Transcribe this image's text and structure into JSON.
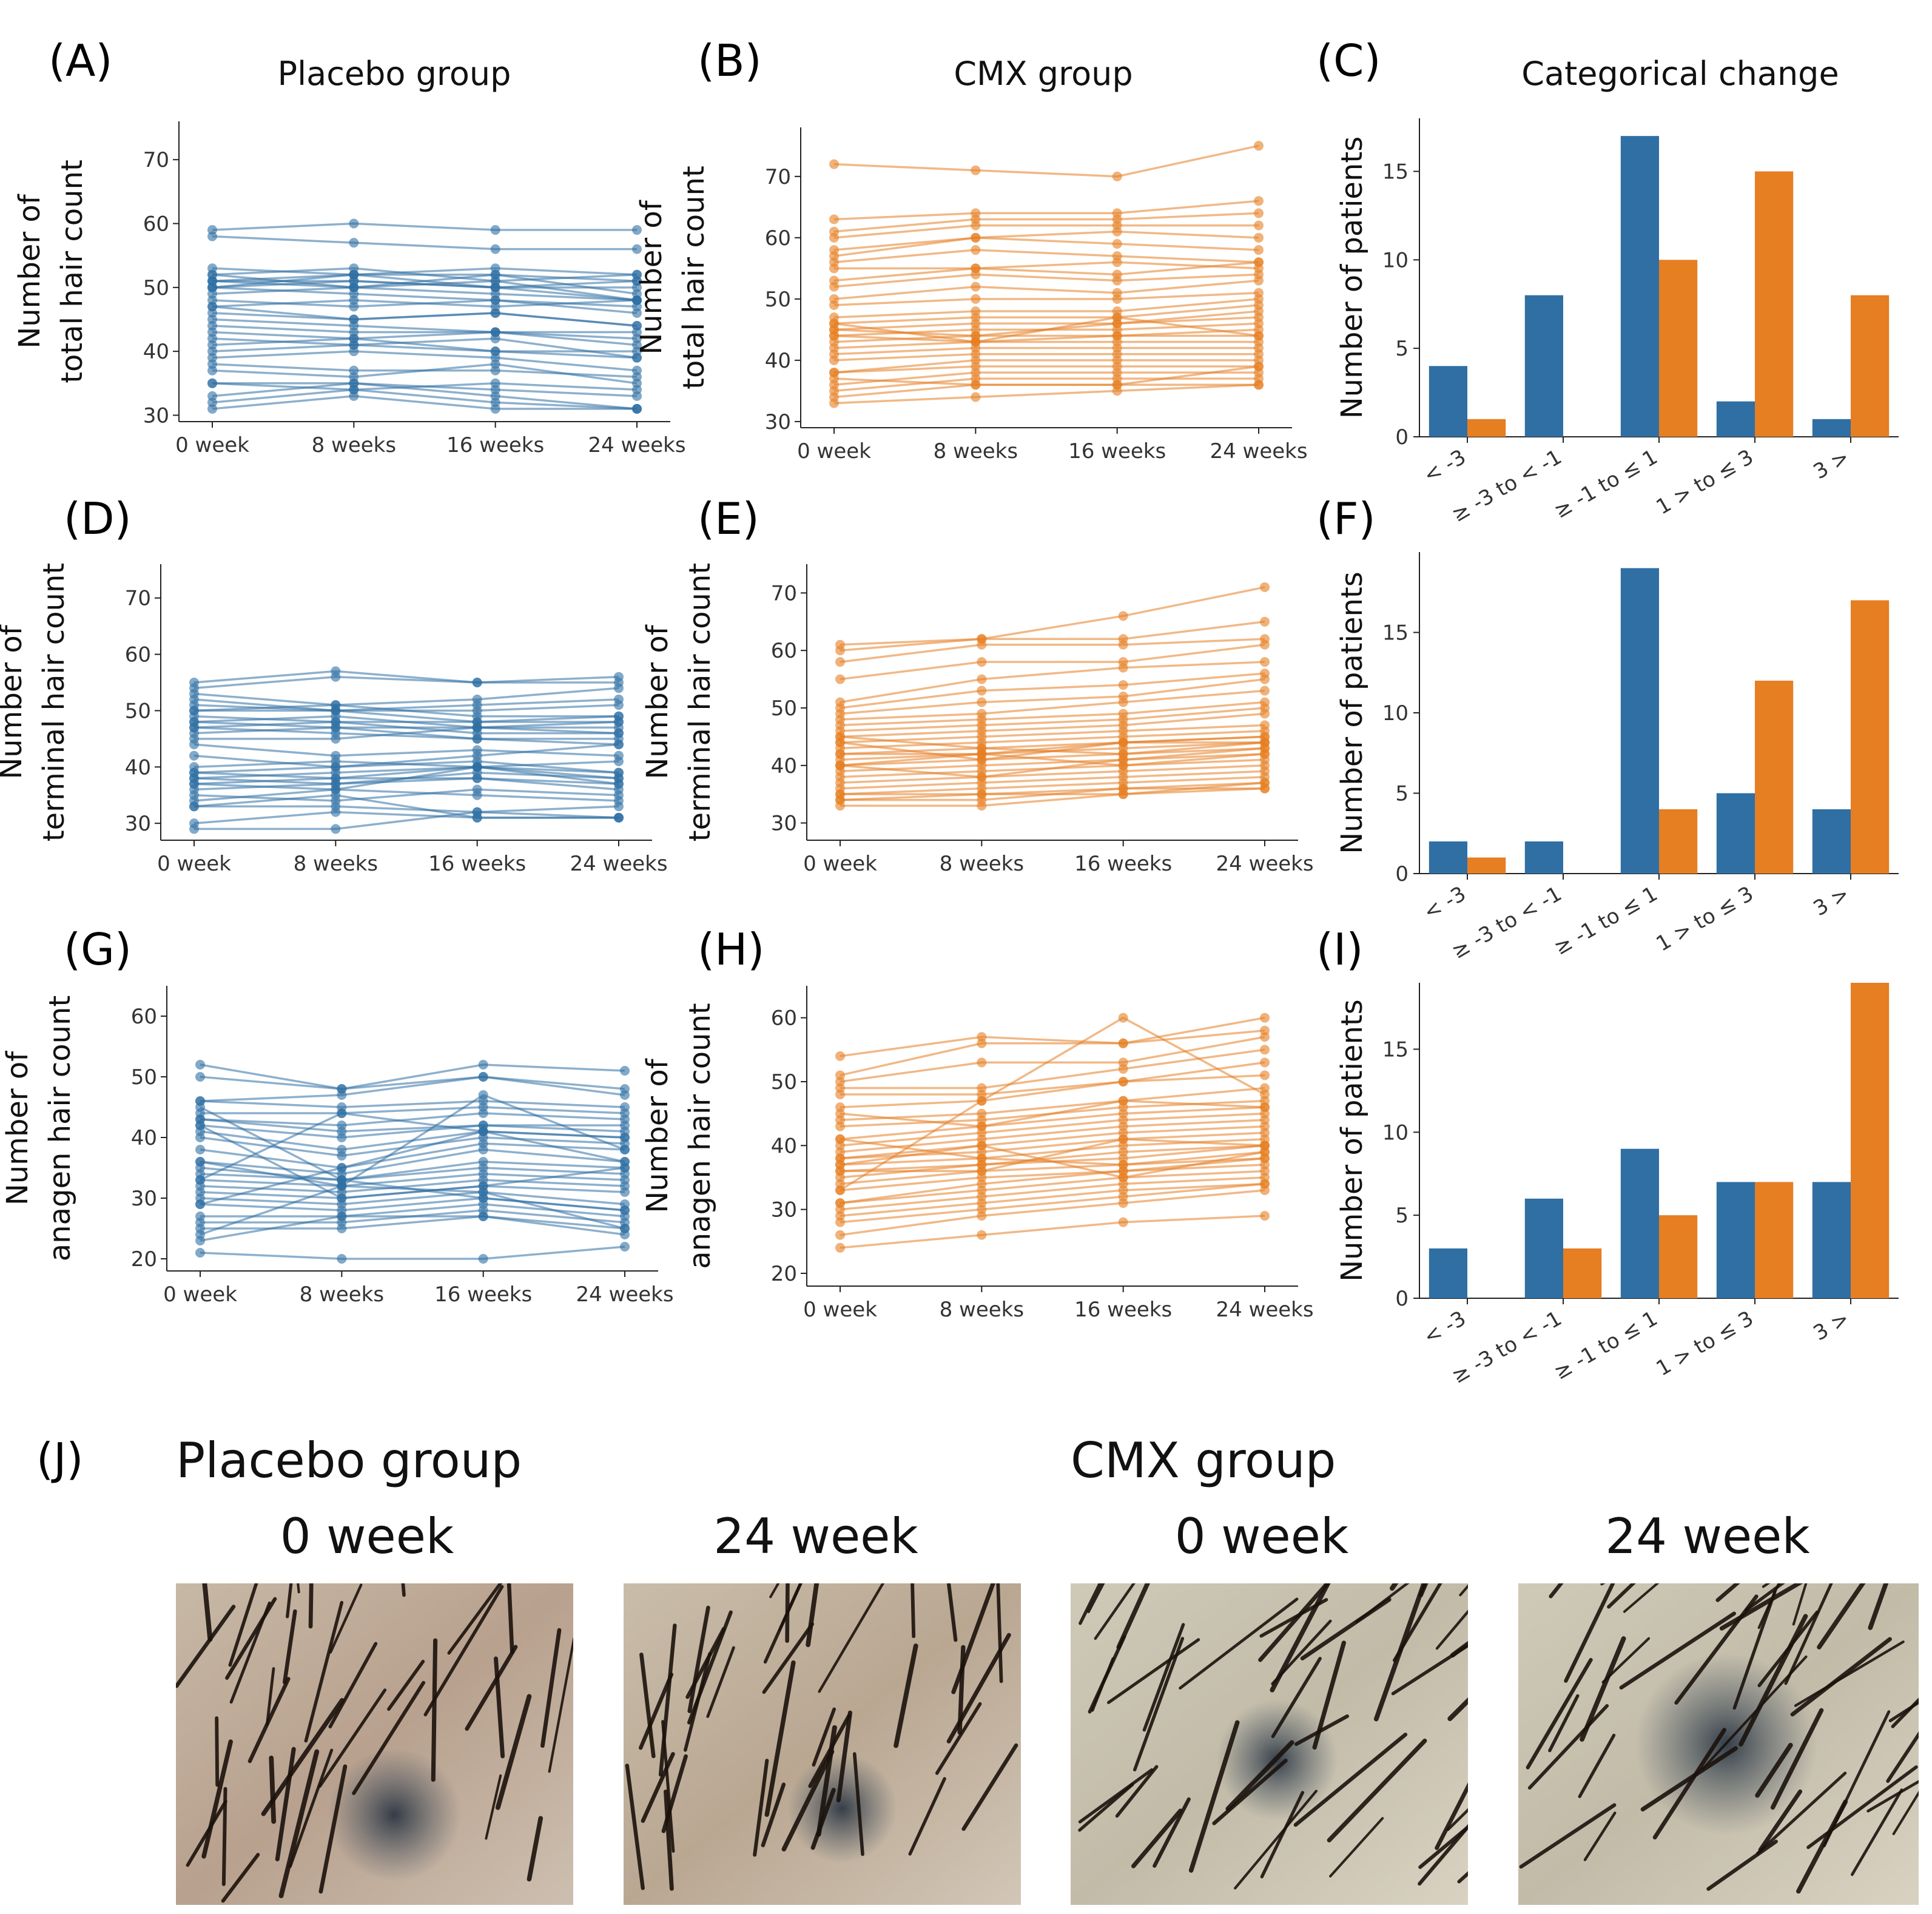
{
  "titles": {
    "placebo": "Placebo group",
    "cmx": "CMX group",
    "categorical": "Categorical change"
  },
  "panel_labels": [
    "(A)",
    "(B)",
    "(C)",
    "(D)",
    "(E)",
    "(F)",
    "(G)",
    "(H)",
    "(I)",
    "(J)"
  ],
  "colors": {
    "placebo": "#2f6fa4",
    "cmx": "#e67e22"
  },
  "photos": {
    "placebo_title": "Placebo group",
    "cmx_title": "CMX group",
    "labels": [
      "0 week",
      "24 week",
      "0 week",
      "24 week"
    ],
    "descriptions": [
      "scalp-placebo-0-week",
      "scalp-placebo-24-week",
      "scalp-cmx-0-week",
      "scalp-cmx-24-week"
    ]
  },
  "chart_data": [
    {
      "id": "A",
      "type": "line",
      "group": "placebo",
      "title": "Placebo group",
      "ylabel_lines": [
        "Number of",
        "total hair count"
      ],
      "categories": [
        "0 week",
        "8 weeks",
        "16 weeks",
        "24 weeks"
      ],
      "ylim": [
        29,
        76
      ],
      "yticks": [
        30,
        40,
        50,
        60,
        70
      ],
      "subjects": [
        [
          59,
          60,
          59,
          59
        ],
        [
          58,
          57,
          56,
          56
        ],
        [
          53,
          52,
          53,
          52
        ],
        [
          52,
          53,
          51,
          52
        ],
        [
          51,
          52,
          52,
          51
        ],
        [
          51,
          50,
          52,
          49
        ],
        [
          50,
          51,
          50,
          48
        ],
        [
          50,
          49,
          48,
          47
        ],
        [
          49,
          50,
          49,
          48
        ],
        [
          48,
          47,
          48,
          46
        ],
        [
          47,
          48,
          47,
          48
        ],
        [
          46,
          45,
          46,
          44
        ],
        [
          44,
          43,
          43,
          42
        ],
        [
          43,
          42,
          43,
          41
        ],
        [
          41,
          42,
          40,
          40
        ],
        [
          40,
          41,
          42,
          39
        ],
        [
          39,
          40,
          39,
          37
        ],
        [
          38,
          37,
          37,
          36
        ],
        [
          37,
          36,
          38,
          35
        ],
        [
          35,
          35,
          34,
          33
        ],
        [
          33,
          35,
          33,
          31
        ],
        [
          32,
          34,
          32,
          31
        ],
        [
          31,
          33,
          31,
          31
        ],
        [
          35,
          34,
          35,
          34
        ],
        [
          42,
          41,
          40,
          39
        ],
        [
          45,
          44,
          43,
          43
        ],
        [
          50,
          52,
          50,
          51
        ],
        [
          51,
          51,
          50,
          50
        ],
        [
          52,
          50,
          51,
          48
        ],
        [
          47,
          45,
          46,
          44
        ]
      ]
    },
    {
      "id": "B",
      "type": "line",
      "group": "cmx",
      "title": "CMX group",
      "ylabel_lines": [
        "Number of",
        "total hair count"
      ],
      "categories": [
        "0 week",
        "8 weeks",
        "16 weeks",
        "24 weeks"
      ],
      "ylim": [
        29,
        78
      ],
      "yticks": [
        30,
        40,
        50,
        60,
        70
      ],
      "subjects": [
        [
          72,
          71,
          70,
          75
        ],
        [
          63,
          64,
          64,
          66
        ],
        [
          61,
          63,
          63,
          64
        ],
        [
          60,
          62,
          62,
          62
        ],
        [
          58,
          60,
          61,
          60
        ],
        [
          57,
          60,
          59,
          58
        ],
        [
          56,
          58,
          57,
          56
        ],
        [
          55,
          55,
          56,
          55
        ],
        [
          53,
          55,
          54,
          56
        ],
        [
          52,
          54,
          53,
          54
        ],
        [
          50,
          52,
          51,
          53
        ],
        [
          49,
          50,
          50,
          51
        ],
        [
          47,
          48,
          48,
          50
        ],
        [
          46,
          47,
          47,
          49
        ],
        [
          45,
          46,
          46,
          48
        ],
        [
          45,
          44,
          46,
          47
        ],
        [
          44,
          45,
          45,
          46
        ],
        [
          44,
          43,
          44,
          45
        ],
        [
          43,
          44,
          44,
          44
        ],
        [
          42,
          43,
          43,
          43
        ],
        [
          41,
          42,
          42,
          42
        ],
        [
          40,
          41,
          41,
          41
        ],
        [
          38,
          40,
          40,
          40
        ],
        [
          38,
          39,
          39,
          39
        ],
        [
          36,
          38,
          38,
          38
        ],
        [
          35,
          37,
          37,
          37
        ],
        [
          34,
          36,
          36,
          36
        ],
        [
          33,
          34,
          35,
          36
        ],
        [
          37,
          36,
          36,
          39
        ],
        [
          46,
          43,
          47,
          44
        ]
      ]
    },
    {
      "id": "C",
      "type": "bar",
      "title": "Categorical change",
      "ylabel": "Number of patients",
      "categories": [
        "< -3",
        "≥ -3 to < -1",
        "≥ -1 to ≤ 1",
        "1 > to ≤ 3",
        "3 >"
      ],
      "ylim": [
        0,
        18
      ],
      "yticks": [
        0,
        5,
        10,
        15
      ],
      "series": [
        {
          "name": "Placebo",
          "values": [
            4,
            8,
            17,
            2,
            1
          ]
        },
        {
          "name": "CMX",
          "values": [
            1,
            0,
            10,
            15,
            8
          ]
        }
      ]
    },
    {
      "id": "D",
      "type": "line",
      "group": "placebo",
      "ylabel_lines": [
        "Number of",
        "terminal hair count"
      ],
      "categories": [
        "0 week",
        "8 weeks",
        "16 weeks",
        "24 weeks"
      ],
      "ylim": [
        27,
        76
      ],
      "yticks": [
        30,
        40,
        50,
        60,
        70
      ],
      "subjects": [
        [
          55,
          57,
          55,
          56
        ],
        [
          54,
          56,
          55,
          55
        ],
        [
          53,
          51,
          52,
          54
        ],
        [
          52,
          50,
          51,
          52
        ],
        [
          51,
          50,
          50,
          51
        ],
        [
          50,
          51,
          49,
          49
        ],
        [
          49,
          48,
          48,
          48
        ],
        [
          48,
          49,
          47,
          48
        ],
        [
          48,
          47,
          47,
          47
        ],
        [
          47,
          48,
          46,
          46
        ],
        [
          47,
          46,
          45,
          45
        ],
        [
          46,
          47,
          45,
          44
        ],
        [
          44,
          42,
          43,
          42
        ],
        [
          40,
          41,
          40,
          41
        ],
        [
          39,
          40,
          41,
          39
        ],
        [
          38,
          39,
          40,
          38
        ],
        [
          38,
          37,
          39,
          38
        ],
        [
          37,
          38,
          38,
          37
        ],
        [
          37,
          36,
          40,
          37
        ],
        [
          36,
          37,
          38,
          36
        ],
        [
          35,
          34,
          36,
          35
        ],
        [
          34,
          36,
          35,
          34
        ],
        [
          33,
          33,
          32,
          33
        ],
        [
          33,
          35,
          31,
          31
        ],
        [
          30,
          32,
          31,
          31
        ],
        [
          29,
          29,
          32,
          31
        ],
        [
          45,
          45,
          47,
          46
        ],
        [
          50,
          50,
          48,
          49
        ],
        [
          42,
          40,
          42,
          44
        ],
        [
          39,
          38,
          40,
          39
        ]
      ]
    },
    {
      "id": "E",
      "type": "line",
      "group": "cmx",
      "ylabel_lines": [
        "Number of",
        "terminal hair count"
      ],
      "categories": [
        "0 week",
        "8 weeks",
        "16 weeks",
        "24 weeks"
      ],
      "ylim": [
        27,
        75
      ],
      "yticks": [
        30,
        40,
        50,
        60,
        70
      ],
      "subjects": [
        [
          61,
          62,
          66,
          71
        ],
        [
          60,
          62,
          62,
          65
        ],
        [
          58,
          61,
          61,
          62
        ],
        [
          55,
          58,
          58,
          61
        ],
        [
          51,
          55,
          57,
          58
        ],
        [
          50,
          53,
          54,
          56
        ],
        [
          49,
          51,
          52,
          55
        ],
        [
          48,
          49,
          51,
          53
        ],
        [
          47,
          48,
          49,
          51
        ],
        [
          46,
          47,
          48,
          50
        ],
        [
          45,
          46,
          47,
          49
        ],
        [
          44,
          45,
          46,
          47
        ],
        [
          43,
          44,
          45,
          46
        ],
        [
          42,
          43,
          44,
          45
        ],
        [
          41,
          42,
          44,
          44
        ],
        [
          40,
          42,
          43,
          44
        ],
        [
          40,
          41,
          42,
          43
        ],
        [
          39,
          40,
          41,
          42
        ],
        [
          38,
          39,
          40,
          41
        ],
        [
          37,
          38,
          39,
          40
        ],
        [
          36,
          37,
          38,
          39
        ],
        [
          35,
          36,
          37,
          38
        ],
        [
          35,
          35,
          36,
          37
        ],
        [
          34,
          34,
          36,
          36
        ],
        [
          33,
          33,
          35,
          36
        ],
        [
          34,
          35,
          35,
          37
        ],
        [
          44,
          41,
          44,
          45
        ],
        [
          45,
          43,
          42,
          44
        ],
        [
          42,
          42,
          40,
          42
        ],
        [
          40,
          38,
          41,
          43
        ]
      ]
    },
    {
      "id": "F",
      "type": "bar",
      "ylabel": "Number of patients",
      "categories": [
        "< -3",
        "≥ -3 to < -1",
        "≥ -1 to ≤ 1",
        "1 > to ≤ 3",
        "3 >"
      ],
      "ylim": [
        0,
        20
      ],
      "yticks": [
        0,
        5,
        10,
        15
      ],
      "series": [
        {
          "name": "Placebo",
          "values": [
            2,
            2,
            19,
            5,
            4
          ]
        },
        {
          "name": "CMX",
          "values": [
            1,
            0,
            4,
            12,
            17
          ]
        }
      ]
    },
    {
      "id": "G",
      "type": "line",
      "group": "placebo",
      "ylabel_lines": [
        "Number of",
        "anagen hair count"
      ],
      "categories": [
        "0 week",
        "8 weeks",
        "16 weeks",
        "24 weeks"
      ],
      "ylim": [
        18,
        65
      ],
      "yticks": [
        20,
        30,
        40,
        50,
        60
      ],
      "subjects": [
        [
          52,
          48,
          52,
          51
        ],
        [
          50,
          48,
          50,
          48
        ],
        [
          46,
          47,
          50,
          47
        ],
        [
          46,
          45,
          46,
          45
        ],
        [
          44,
          44,
          45,
          44
        ],
        [
          43,
          42,
          44,
          43
        ],
        [
          43,
          41,
          42,
          42
        ],
        [
          42,
          40,
          42,
          41
        ],
        [
          41,
          38,
          41,
          40
        ],
        [
          40,
          37,
          40,
          39
        ],
        [
          38,
          35,
          39,
          38
        ],
        [
          36,
          34,
          38,
          36
        ],
        [
          35,
          33,
          36,
          35
        ],
        [
          34,
          33,
          35,
          34
        ],
        [
          33,
          32,
          34,
          33
        ],
        [
          32,
          31,
          33,
          32
        ],
        [
          31,
          30,
          32,
          31
        ],
        [
          30,
          29,
          31,
          29
        ],
        [
          29,
          28,
          30,
          28
        ],
        [
          27,
          27,
          29,
          27
        ],
        [
          26,
          26,
          28,
          26
        ],
        [
          25,
          25,
          27,
          25
        ],
        [
          23,
          27,
          27,
          24
        ],
        [
          21,
          20,
          20,
          22
        ],
        [
          33,
          44,
          41,
          40
        ],
        [
          36,
          32,
          47,
          38
        ],
        [
          42,
          30,
          32,
          35
        ],
        [
          45,
          33,
          30,
          28
        ],
        [
          29,
          35,
          41,
          36
        ],
        [
          24,
          32,
          31,
          25
        ]
      ]
    },
    {
      "id": "H",
      "type": "line",
      "group": "cmx",
      "ylabel_lines": [
        "Number of",
        "anagen hair count"
      ],
      "categories": [
        "0 week",
        "8 weeks",
        "16 weeks",
        "24 weeks"
      ],
      "ylim": [
        18,
        65
      ],
      "yticks": [
        20,
        30,
        40,
        50,
        60
      ],
      "subjects": [
        [
          54,
          57,
          56,
          60
        ],
        [
          51,
          56,
          56,
          58
        ],
        [
          50,
          53,
          53,
          57
        ],
        [
          49,
          49,
          52,
          55
        ],
        [
          48,
          48,
          50,
          53
        ],
        [
          46,
          47,
          50,
          51
        ],
        [
          44,
          45,
          47,
          49
        ],
        [
          43,
          44,
          46,
          47
        ],
        [
          41,
          43,
          45,
          46
        ],
        [
          40,
          42,
          44,
          45
        ],
        [
          39,
          41,
          43,
          44
        ],
        [
          38,
          40,
          42,
          43
        ],
        [
          38,
          39,
          41,
          42
        ],
        [
          37,
          38,
          40,
          41
        ],
        [
          36,
          37,
          39,
          40
        ],
        [
          35,
          37,
          38,
          40
        ],
        [
          34,
          36,
          37,
          39
        ],
        [
          33,
          35,
          36,
          38
        ],
        [
          31,
          34,
          36,
          37
        ],
        [
          31,
          33,
          35,
          36
        ],
        [
          30,
          32,
          34,
          35
        ],
        [
          29,
          31,
          33,
          34
        ],
        [
          28,
          30,
          32,
          34
        ],
        [
          26,
          29,
          31,
          33
        ],
        [
          24,
          26,
          28,
          29
        ],
        [
          33,
          47,
          60,
          48
        ],
        [
          37,
          40,
          35,
          39
        ],
        [
          41,
          38,
          37,
          38
        ],
        [
          45,
          43,
          47,
          46
        ],
        [
          36,
          36,
          41,
          40
        ]
      ]
    },
    {
      "id": "I",
      "type": "bar",
      "ylabel": "Number of patients",
      "categories": [
        "< -3",
        "≥ -3 to < -1",
        "≥ -1 to ≤ 1",
        "1 > to ≤ 3",
        "3 >"
      ],
      "ylim": [
        0,
        19
      ],
      "yticks": [
        0,
        5,
        10,
        15
      ],
      "series": [
        {
          "name": "Placebo",
          "values": [
            3,
            6,
            9,
            7,
            7
          ]
        },
        {
          "name": "CMX",
          "values": [
            0,
            3,
            5,
            7,
            19
          ]
        }
      ]
    }
  ]
}
